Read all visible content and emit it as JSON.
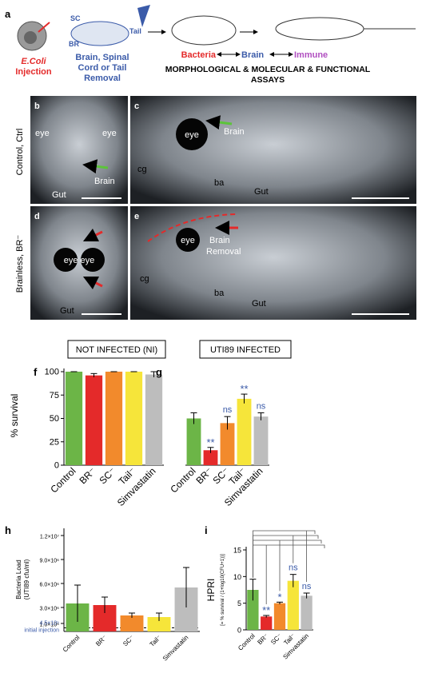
{
  "figure": {
    "panel_a": {
      "letter": "a",
      "injection": [
        "E.Coli",
        "Injection"
      ],
      "sc": "SC",
      "br": "BR",
      "tail": "Tail",
      "removal": [
        "Brain, Spinal",
        "Cord or Tail",
        "Removal"
      ],
      "bacteria": "Bacteria",
      "brain": "Brain",
      "immune": "Immune",
      "assays": [
        "MORPHOLOGICAL & MOLECULAR & FUNCTIONAL",
        "ASSAYS"
      ]
    },
    "rows": [
      "Control, Ctrl",
      "Brainless, BR⁻"
    ],
    "photos": [
      {
        "letter": "b",
        "labels": [
          "eye",
          "eye",
          "Brain",
          "Gut"
        ]
      },
      {
        "letter": "c",
        "labels": [
          "eye",
          "Brain",
          "cg",
          "ba",
          "Gut"
        ]
      },
      {
        "letter": "d",
        "labels": [
          "eye eye",
          "Gut"
        ]
      },
      {
        "letter": "e",
        "labels": [
          "eye",
          "Brain",
          "Removal",
          "cg",
          "ba",
          "Gut"
        ]
      }
    ]
  },
  "chart_data": [
    {
      "type": "bar",
      "letter": "f",
      "title": "NOT INFECTED (NI)",
      "ylabel": [
        "% survival"
      ],
      "categories": [
        "Control",
        "BR⁻",
        "SC⁻",
        "Tail⁻",
        "Simvastatin"
      ],
      "values": [
        100,
        96,
        100,
        100,
        97
      ],
      "errors": [
        0,
        2,
        0,
        0,
        3
      ],
      "colors": [
        "#6cb547",
        "#e42a2a",
        "#f28a2c",
        "#f6e53a",
        "#bdbdbd"
      ],
      "ylim": [
        0,
        100
      ],
      "yticks": [
        0,
        25,
        50,
        75,
        100
      ]
    },
    {
      "type": "bar",
      "letter": "g",
      "title": "UTI89 INFECTED",
      "categories": [
        "Control",
        "BR⁻",
        "SC⁻",
        "Tail⁻",
        "Simvastatin"
      ],
      "values": [
        50,
        16,
        45,
        71,
        52
      ],
      "errors": [
        6,
        3,
        7,
        5,
        4
      ],
      "significance": [
        null,
        "**",
        "ns",
        "**",
        "ns"
      ],
      "colors": [
        "#6cb547",
        "#e42a2a",
        "#f28a2c",
        "#f6e53a",
        "#bdbdbd"
      ],
      "ylim": [
        0,
        100
      ]
    },
    {
      "type": "bar",
      "letter": "h",
      "ylabel": [
        "Bacteria Load",
        "(UTI89 cfu/ml)"
      ],
      "categories": [
        "Control",
        "BR⁻",
        "SC⁻",
        "Tail⁻",
        "Simvastatin"
      ],
      "values": [
        3500000,
        3300000,
        2000000,
        1800000,
        5500000
      ],
      "errors": [
        2300000,
        1000000,
        300000,
        500000,
        2500000
      ],
      "colors": [
        "#6cb547",
        "#e42a2a",
        "#f28a2c",
        "#f6e53a",
        "#bdbdbd"
      ],
      "ylim": [
        0,
        12500000
      ],
      "yticks": [
        {
          "value": 1000000,
          "label": "1.0×10⁶"
        },
        {
          "value": 3000000,
          "label": "3.0×10⁶"
        },
        {
          "value": 6000000,
          "label": "6.0×10⁶"
        },
        {
          "value": 9000000,
          "label": "9.0×10⁶"
        },
        {
          "value": 12000000,
          "label": "1.2×10⁷"
        }
      ],
      "baseline": 450000,
      "baseline_label": [
        "4.5×10⁵",
        "initial injection"
      ]
    },
    {
      "type": "bar",
      "letter": "i",
      "ylabel": [
        "HPRI",
        "[= % survival / (1+log10(CFU+1))]"
      ],
      "categories": [
        "Control",
        "BR⁻",
        "SC⁻",
        "Tail⁻",
        "Simvastatin"
      ],
      "values": [
        7.5,
        2.5,
        5.0,
        9.2,
        6.4
      ],
      "errors": [
        2.0,
        0.2,
        0.2,
        1.2,
        0.5
      ],
      "significance": [
        null,
        "**",
        "*",
        "ns",
        "ns"
      ],
      "colors": [
        "#6cb547",
        "#e42a2a",
        "#f28a2c",
        "#f6e53a",
        "#bdbdbd"
      ],
      "ylim": [
        0,
        15
      ],
      "yticks": [
        0,
        5,
        10,
        15
      ]
    }
  ]
}
